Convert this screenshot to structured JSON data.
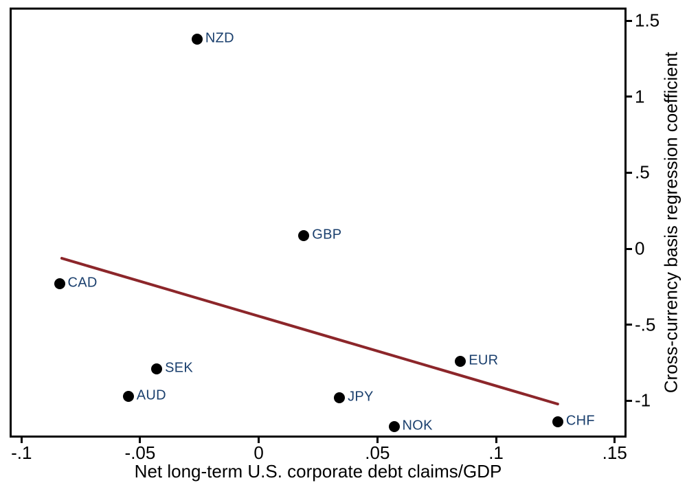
{
  "figure": {
    "background_color": "#ffffff",
    "frame_color": "#000000"
  },
  "chart_data": {
    "type": "scatter",
    "title": "",
    "xlabel": "Net long-term U.S. corporate debt claims/GDP",
    "ylabel": "Cross-currency basis regression coefficient",
    "xlim": [
      -0.105,
      0.155
    ],
    "ylim": [
      -1.243,
      1.587
    ],
    "grid": false,
    "legend_position": "none",
    "axis_sides": {
      "x_ticks": "bottom",
      "y_ticks": "right"
    },
    "x_ticks": [
      {
        "value": -0.1,
        "label": "-.1"
      },
      {
        "value": -0.05,
        "label": "-.05"
      },
      {
        "value": 0,
        "label": "0"
      },
      {
        "value": 0.05,
        "label": ".05"
      },
      {
        "value": 0.1,
        "label": ".1"
      },
      {
        "value": 0.15,
        "label": ".15"
      }
    ],
    "y_ticks": [
      {
        "value": 1.5,
        "label": "1.5"
      },
      {
        "value": 1,
        "label": "1"
      },
      {
        "value": 0.5,
        "label": ".5"
      },
      {
        "value": 0,
        "label": "0"
      },
      {
        "value": -0.5,
        "label": "-.5"
      },
      {
        "value": -1,
        "label": "-1"
      }
    ],
    "marker_color": "#000000",
    "point_label_color": "#1a3f6d",
    "points": [
      {
        "label": "NZD",
        "x": -0.026,
        "y": 1.38
      },
      {
        "label": "GBP",
        "x": 0.019,
        "y": 0.085
      },
      {
        "label": "CAD",
        "x": -0.084,
        "y": -0.23
      },
      {
        "label": "SEK",
        "x": -0.043,
        "y": -0.79
      },
      {
        "label": "AUD",
        "x": -0.055,
        "y": -0.97
      },
      {
        "label": "EUR",
        "x": 0.085,
        "y": -0.74
      },
      {
        "label": "JPY",
        "x": 0.034,
        "y": -0.98
      },
      {
        "label": "NOK",
        "x": 0.057,
        "y": -1.17
      },
      {
        "label": "CHF",
        "x": 0.126,
        "y": -1.14
      }
    ],
    "fit_line": {
      "x_start": -0.083,
      "y_start": -0.063,
      "x_end": 0.126,
      "y_end": -1.022,
      "color": "#8c262a",
      "width": 4
    }
  }
}
